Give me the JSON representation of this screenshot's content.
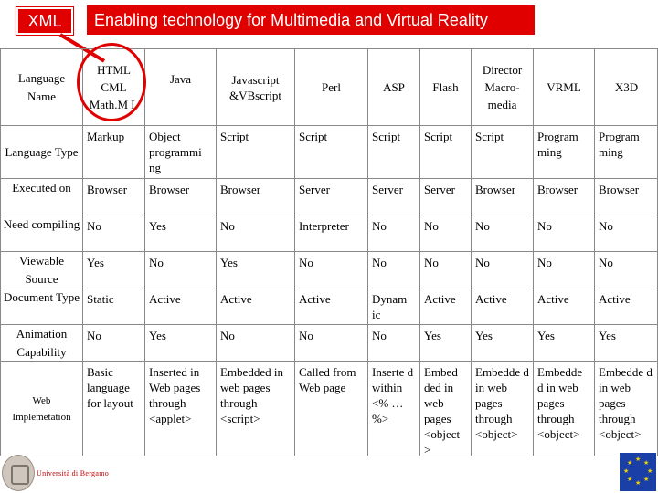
{
  "badge": "XML",
  "title": "Enabling technology for Multimedia and Virtual Reality",
  "columns": [
    "Language Name",
    "HTML CML Math.M L",
    "Java",
    "Javascript &VBscript",
    "Perl",
    "ASP",
    "Flash",
    "Director Macro-media",
    "VRML",
    "X3D"
  ],
  "rows": [
    {
      "label": "Language Type",
      "cells": [
        "Markup",
        "Object programmi ng",
        "Script",
        "Script",
        "Script",
        "Script",
        "Script",
        "Program ming",
        "Program ming"
      ]
    },
    {
      "label": "Executed on",
      "cells": [
        "Browser",
        "Browser",
        "Browser",
        "Server",
        "Server",
        "Server",
        "Browser",
        "Browser",
        "Browser"
      ]
    },
    {
      "label": "Need compiling",
      "cells": [
        "No",
        "Yes",
        "No",
        "Interpreter",
        "No",
        "No",
        "No",
        "No",
        "No"
      ]
    },
    {
      "label": "Viewable Source",
      "cells": [
        "Yes",
        "No",
        "Yes",
        "No",
        "No",
        "No",
        "No",
        "No",
        "No"
      ]
    },
    {
      "label": "Document Type",
      "cells": [
        "Static",
        "Active",
        "Active",
        "Active",
        "Dynam ic",
        "Active",
        "Active",
        "Active",
        "Active"
      ]
    },
    {
      "label": "Animation Capability",
      "cells": [
        "No",
        "Yes",
        "No",
        "No",
        "No",
        "Yes",
        "Yes",
        "Yes",
        "Yes"
      ]
    },
    {
      "label": "Web Implemetation",
      "cells": [
        "Basic language for layout",
        "Inserted in Web pages through <applet>",
        "Embedded in web pages through <script>",
        "Called from Web page",
        "Inserte d within <% …%>",
        "Embed ded in web pages <object >",
        "Embedde d in web pages through <object>",
        "Embedde d in web pages through <object>",
        "Embedde d in web pages through <object>"
      ]
    }
  ],
  "footer": {
    "institution_text": "Università di Bergamo"
  },
  "colors": {
    "accent": "#e00000",
    "grid": "#888888"
  },
  "icons": [
    "university-seal-icon",
    "eu-flag-icon"
  ]
}
